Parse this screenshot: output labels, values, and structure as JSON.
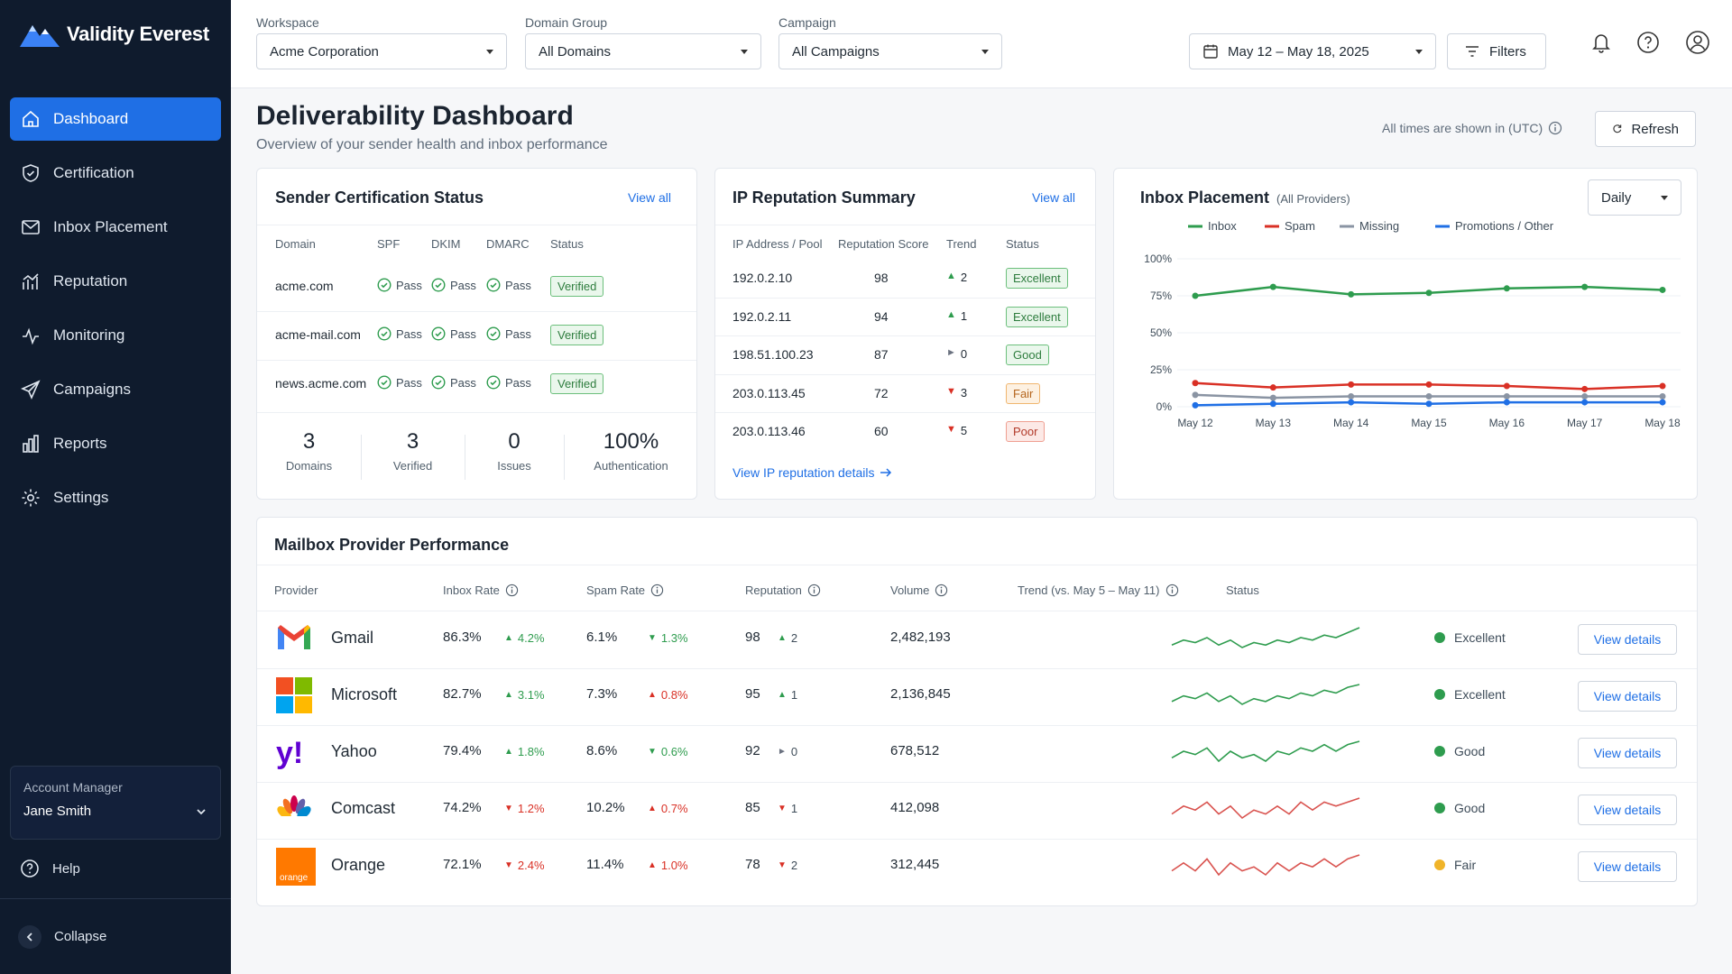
{
  "app": {
    "name": "Validity Everest"
  },
  "nav": [
    {
      "label": "Dashboard",
      "icon": "home-icon",
      "active": true
    },
    {
      "label": "Certification",
      "icon": "shield-icon"
    },
    {
      "label": "Inbox Placement",
      "icon": "mail-icon"
    },
    {
      "label": "Reputation",
      "icon": "trend-icon"
    },
    {
      "label": "Monitoring",
      "icon": "pulse-icon"
    },
    {
      "label": "Campaigns",
      "icon": "send-icon"
    },
    {
      "label": "Reports",
      "icon": "bar-chart-icon"
    },
    {
      "label": "Settings",
      "icon": "gear-icon"
    }
  ],
  "account": {
    "label": "Account Manager",
    "name": "Jane Smith"
  },
  "help": "Help",
  "collapse": "Collapse",
  "filters": {
    "workspace": {
      "label": "Workspace",
      "value": "Acme Corporation"
    },
    "domain_group": {
      "label": "Domain Group",
      "value": "All Domains"
    },
    "campaign": {
      "label": "Campaign",
      "value": "All Campaigns"
    },
    "date_range": "May 12 – May 18, 2025",
    "filters_button": "Filters"
  },
  "page": {
    "title": "Deliverability Dashboard",
    "subtitle": "Overview of your sender health and inbox performance",
    "timezone": "All times are shown in (UTC)",
    "refresh": "Refresh"
  },
  "sender_cert": {
    "title": "Sender Certification Status",
    "view_all": "View all",
    "columns": [
      "Domain",
      "SPF",
      "DKIM",
      "DMARC",
      "Status"
    ],
    "rows": [
      {
        "domain": "acme.com",
        "spf": "Pass",
        "dkim": "Pass",
        "dmarc": "Pass",
        "status": "Verified"
      },
      {
        "domain": "acme-mail.com",
        "spf": "Pass",
        "dkim": "Pass",
        "dmarc": "Pass",
        "status": "Verified"
      },
      {
        "domain": "news.acme.com",
        "spf": "Pass",
        "dkim": "Pass",
        "dmarc": "Pass",
        "status": "Verified"
      }
    ],
    "stats": [
      {
        "value": "3",
        "label": "Domains"
      },
      {
        "value": "3",
        "label": "Verified"
      },
      {
        "value": "0",
        "label": "Issues"
      },
      {
        "value": "100%",
        "label": "Authentication"
      }
    ]
  },
  "ip_rep": {
    "title": "IP Reputation Summary",
    "view_all": "View all",
    "columns": [
      "IP Address / Pool",
      "Reputation Score",
      "Trend",
      "Status"
    ],
    "rows": [
      {
        "ip": "192.0.2.10",
        "score": "98",
        "dir": "up",
        "trend": "2",
        "status": "Excellent",
        "tone": "green"
      },
      {
        "ip": "192.0.2.11",
        "score": "94",
        "dir": "up",
        "trend": "1",
        "status": "Excellent",
        "tone": "green"
      },
      {
        "ip": "198.51.100.23",
        "score": "87",
        "dir": "flat",
        "trend": "0",
        "status": "Good",
        "tone": "green"
      },
      {
        "ip": "203.0.113.45",
        "score": "72",
        "dir": "down",
        "trend": "3",
        "status": "Fair",
        "tone": "orange"
      },
      {
        "ip": "203.0.113.46",
        "score": "60",
        "dir": "down",
        "trend": "5",
        "status": "Poor",
        "tone": "red"
      }
    ],
    "details_link": "View IP reputation details"
  },
  "inbox_placement": {
    "title": "Inbox Placement",
    "subtitle": "(All Providers)",
    "granularity": "Daily"
  },
  "chart_data": {
    "type": "line",
    "x": [
      "May 12",
      "May 13",
      "May 14",
      "May 15",
      "May 16",
      "May 17",
      "May 18"
    ],
    "ylim": [
      0,
      100
    ],
    "yticks": [
      "100%",
      "75%",
      "50%",
      "25%",
      "0%"
    ],
    "legend_position": "top",
    "grid": true,
    "series": [
      {
        "name": "Inbox",
        "color": "#2e9c4e",
        "values": [
          75,
          81,
          76,
          77,
          80,
          81,
          79
        ]
      },
      {
        "name": "Spam",
        "color": "#d93025",
        "values": [
          16,
          13,
          15,
          15,
          14,
          12,
          14
        ]
      },
      {
        "name": "Missing",
        "color": "#8a94a3",
        "values": [
          8,
          6,
          7,
          7,
          7,
          7,
          7
        ]
      },
      {
        "name": "Promotions / Other",
        "color": "#1f6fe5",
        "values": [
          1,
          2,
          3,
          2,
          3,
          3,
          3
        ]
      }
    ]
  },
  "mailbox": {
    "title": "Mailbox Provider Performance",
    "columns": [
      "Provider",
      "Inbox Rate",
      "Spam Rate",
      "Reputation",
      "Volume",
      "Trend (vs. May 5 – May 11)",
      "Status"
    ],
    "rows": [
      {
        "provider": "Gmail",
        "logo": "gmail-logo-icon",
        "inbox": "86.3%",
        "inbox_dir": "up",
        "inbox_delta": "4.2%",
        "spam": "6.1%",
        "spam_dir": "down",
        "spam_delta": "1.3%",
        "rep": "98",
        "rep_dir": "up",
        "rep_delta": "2",
        "volume": "2,482,193",
        "spark_color": "#2e9c4e",
        "spark": [
          3,
          5,
          4,
          6,
          3,
          5,
          2,
          4,
          3,
          5,
          4,
          6,
          5,
          7,
          6,
          8,
          10
        ],
        "status": "Excellent",
        "status_color": "#2e9c4e",
        "action": "View details"
      },
      {
        "provider": "Microsoft",
        "logo": "microsoft-logo-icon",
        "inbox": "82.7%",
        "inbox_dir": "up",
        "inbox_delta": "3.1%",
        "spam": "7.3%",
        "spam_dir": "up",
        "spam_delta": "0.8%",
        "rep": "95",
        "rep_dir": "up",
        "rep_delta": "1",
        "volume": "2,136,845",
        "spark_color": "#2e9c4e",
        "spark": [
          4,
          6,
          5,
          7,
          4,
          6,
          3,
          5,
          4,
          6,
          5,
          7,
          6,
          8,
          7,
          9,
          10
        ],
        "status": "Excellent",
        "status_color": "#2e9c4e",
        "action": "View details"
      },
      {
        "provider": "Yahoo",
        "logo": "yahoo-logo-icon",
        "inbox": "79.4%",
        "inbox_dir": "up",
        "inbox_delta": "1.8%",
        "spam": "8.6%",
        "spam_dir": "down",
        "spam_delta": "0.6%",
        "rep": "92",
        "rep_dir": "flat",
        "rep_delta": "0",
        "volume": "678,512",
        "spark_color": "#2e9c4e",
        "spark": [
          4,
          6,
          5,
          7,
          3,
          6,
          4,
          5,
          3,
          6,
          5,
          7,
          6,
          8,
          6,
          8,
          9
        ],
        "status": "Good",
        "status_color": "#2e9c4e",
        "action": "View details"
      },
      {
        "provider": "Comcast",
        "logo": "comcast-logo-icon",
        "inbox": "74.2%",
        "inbox_dir": "down",
        "inbox_delta": "1.2%",
        "spam": "10.2%",
        "spam_dir": "up",
        "spam_delta": "0.7%",
        "rep": "85",
        "rep_dir": "down",
        "rep_delta": "1",
        "volume": "412,098",
        "spark_color": "#d9534f",
        "spark": [
          5,
          7,
          6,
          8,
          5,
          7,
          4,
          6,
          5,
          7,
          5,
          8,
          6,
          8,
          7,
          8,
          9
        ],
        "status": "Good",
        "status_color": "#2e9c4e",
        "action": "View details"
      },
      {
        "provider": "Orange",
        "logo": "orange-logo-icon",
        "inbox": "72.1%",
        "inbox_dir": "down",
        "inbox_delta": "2.4%",
        "spam": "11.4%",
        "spam_dir": "up",
        "spam_delta": "1.0%",
        "rep": "78",
        "rep_dir": "down",
        "rep_delta": "2",
        "volume": "312,445",
        "spark_color": "#d9534f",
        "spark": [
          5,
          7,
          5,
          8,
          4,
          7,
          5,
          6,
          4,
          7,
          5,
          7,
          6,
          8,
          6,
          8,
          9
        ],
        "status": "Fair",
        "status_color": "#f0b429",
        "action": "View details"
      }
    ]
  }
}
